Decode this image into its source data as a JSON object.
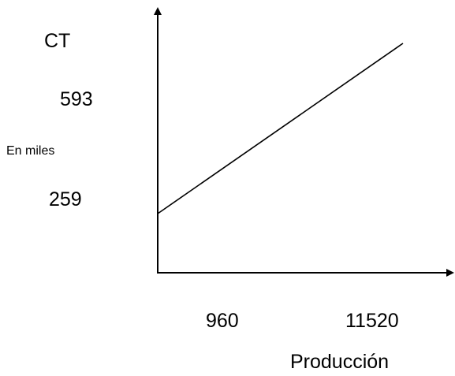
{
  "chart_data": {
    "type": "line",
    "ylabel": "CT",
    "ylabel_note": "En miles",
    "xlabel": "Producción",
    "y_tick_labels": [
      "593",
      "259"
    ],
    "x_tick_labels": [
      "960",
      "11520"
    ],
    "series": [
      {
        "x": [
          0,
          11520
        ],
        "y": [
          259,
          593
        ]
      }
    ],
    "grid": false,
    "legend": "none",
    "line_color": "#000000",
    "axis_color": "#000000"
  }
}
